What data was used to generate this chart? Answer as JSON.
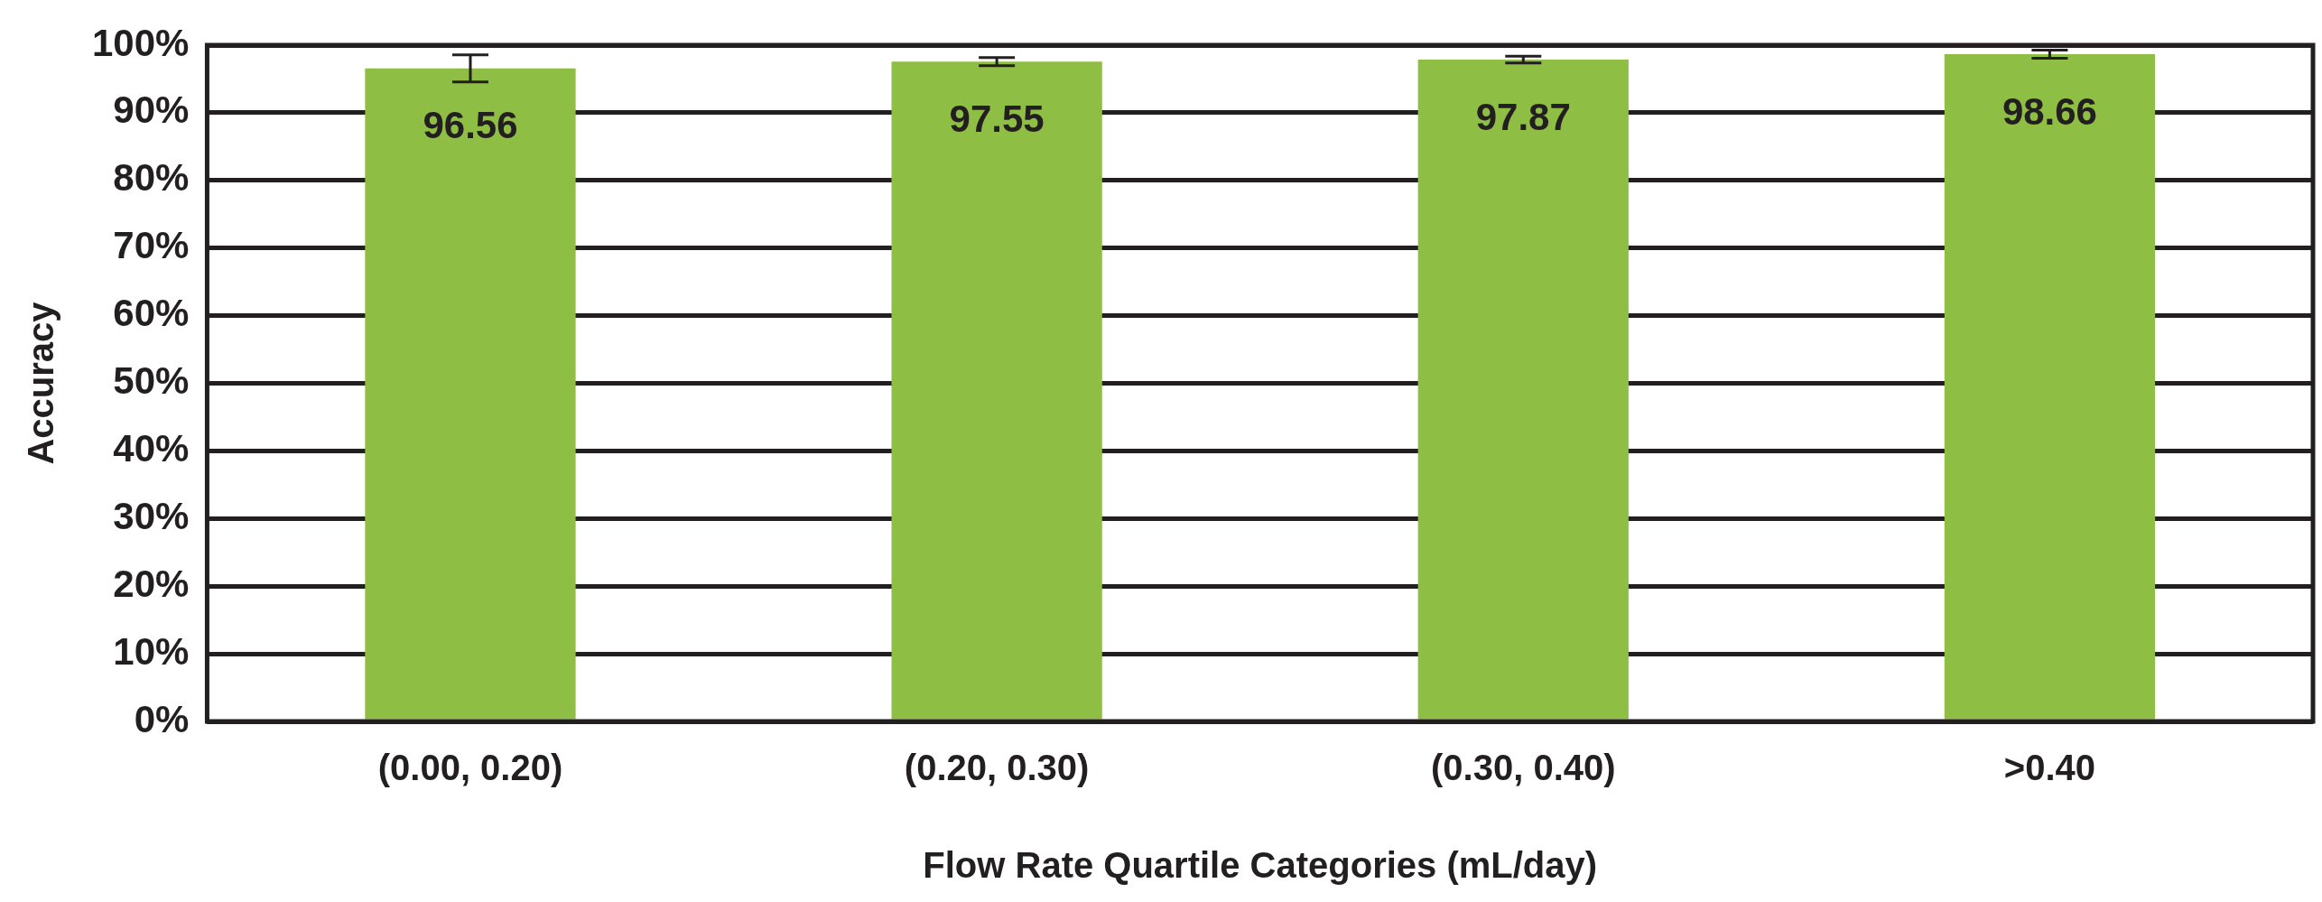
{
  "chart_data": {
    "type": "bar",
    "xlabel": "Flow Rate Quartile Categories (mL/day)",
    "ylabel": "Accuracy",
    "categories": [
      "(0.00, 0.20)",
      "(0.20, 0.30)",
      "(0.30, 0.40)",
      ">0.40"
    ],
    "values": [
      96.56,
      97.55,
      97.87,
      98.66
    ],
    "color": "#8fbe44",
    "errors": [
      2.0,
      0.6,
      0.5,
      0.6
    ],
    "data_labels": true,
    "ylim": [
      0,
      100
    ],
    "yticks": [
      {
        "value": 0,
        "label": "0%"
      },
      {
        "value": 10,
        "label": "10%"
      },
      {
        "value": 20,
        "label": "20%"
      },
      {
        "value": 30,
        "label": "30%"
      },
      {
        "value": 40,
        "label": "40%"
      },
      {
        "value": 50,
        "label": "50%"
      },
      {
        "value": 60,
        "label": "60%"
      },
      {
        "value": 70,
        "label": "70%"
      },
      {
        "value": 80,
        "label": "80%"
      },
      {
        "value": 90,
        "label": "90%"
      },
      {
        "value": 100,
        "label": "100%"
      }
    ],
    "grid": "y",
    "legend": false
  }
}
